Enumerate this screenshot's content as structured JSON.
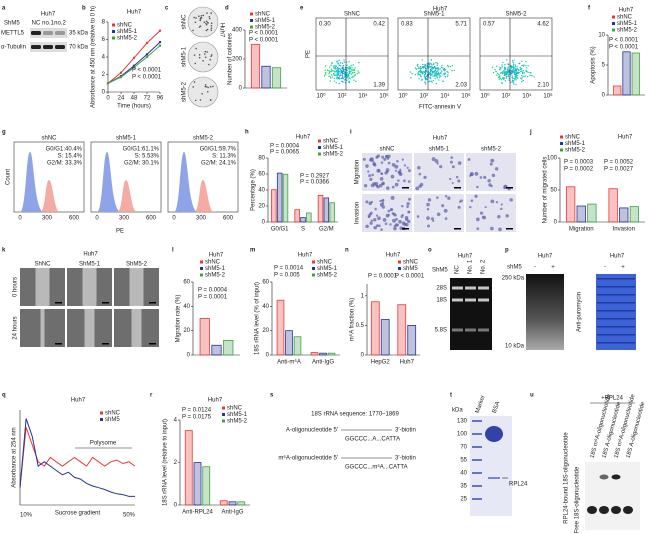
{
  "figure": {
    "a": {
      "letter": "a",
      "cell": "Huh7",
      "group": "ShM5",
      "lanes": [
        "NC",
        "no.1",
        "no.2"
      ],
      "proteins": [
        "METTL5",
        "α-Tubulin"
      ],
      "sizes": [
        "35 kDa",
        "70 kDa"
      ]
    },
    "b": {
      "letter": "b",
      "type": "line",
      "title": "Huh7",
      "xlabel": "Time (hours)",
      "ylabel": "Absorbance at 450 nm (relative to 0 h)",
      "x": [
        0,
        24,
        48,
        72,
        96
      ],
      "xlim": [
        0,
        96
      ],
      "xticks": [
        0,
        24,
        48,
        72,
        96
      ],
      "ylim": [
        0,
        8
      ],
      "yticks": [
        0,
        2,
        4,
        6,
        8
      ],
      "series": [
        {
          "name": "shNC",
          "color": "#e53935",
          "values": [
            1,
            2.2,
            3.9,
            5.6,
            7.0
          ]
        },
        {
          "name": "shM5-1",
          "color": "#283593",
          "values": [
            1,
            1.8,
            3.0,
            4.3,
            5.7
          ]
        },
        {
          "name": "shM5-2",
          "color": "#43a047",
          "values": [
            1,
            1.7,
            2.8,
            4.0,
            5.3
          ]
        }
      ],
      "annotations": [
        "P < 0.0001",
        "P < 0.0001"
      ]
    },
    "c": {
      "letter": "c",
      "cell": "Huh7",
      "rows": [
        "shNC",
        "shM5-1",
        "shM5-2"
      ]
    },
    "d": {
      "letter": "d",
      "type": "bar",
      "ylabel": "Number of colonies",
      "categories": [
        null
      ],
      "ylim": [
        0,
        400
      ],
      "yticks": [
        0,
        200,
        400
      ],
      "series": [
        {
          "name": "shNC",
          "color": "#e53935",
          "values": [
            300
          ]
        },
        {
          "name": "shM5-1",
          "color": "#283593",
          "values": [
            150
          ]
        },
        {
          "name": "shM5-2",
          "color": "#43a047",
          "values": [
            140
          ]
        }
      ],
      "annotations": [
        "P < 0.0001",
        "P < 0.0001"
      ]
    },
    "e": {
      "letter": "e",
      "title": "Huh7",
      "ylabel": "PE",
      "xlabel": "FITC-annexin V",
      "xticks": [
        "10⁰",
        "10²",
        "10⁴",
        "10⁶"
      ],
      "boxes": [
        {
          "label": "ShNC",
          "quadrants": [
            "0.30",
            "0.42",
            "1.39"
          ]
        },
        {
          "label": "ShM5-1",
          "quadrants": [
            "0.83",
            "5.71",
            "2.03"
          ]
        },
        {
          "label": "ShM5-2",
          "quadrants": [
            "0.57",
            "4.62",
            "2.10"
          ]
        }
      ]
    },
    "f": {
      "letter": "f",
      "type": "bar",
      "title": "Huh7",
      "ylabel": "Apoptosis (%)",
      "categories": [
        null
      ],
      "ylim": [
        0,
        10
      ],
      "yticks": [
        0,
        5,
        10
      ],
      "series": [
        {
          "name": "shNC",
          "color": "#e53935",
          "values": [
            1.5
          ]
        },
        {
          "name": "shM5-1",
          "color": "#283593",
          "values": [
            7.2
          ]
        },
        {
          "name": "shM5-2",
          "color": "#43a047",
          "values": [
            7.0
          ]
        }
      ],
      "annotations": [
        "P < 0.0001",
        "P < 0.0001"
      ]
    },
    "g": {
      "letter": "g",
      "ylabel": "Count",
      "xlabel": "PE",
      "xticks": [
        0,
        300,
        600
      ],
      "boxes": [
        {
          "label": "shNC",
          "stats": [
            "G0/G1:40.4%",
            "S: 15.4%",
            "G2/M: 33.3%"
          ]
        },
        {
          "label": "shM5-1",
          "stats": [
            "G0/G1:61.1%",
            "S: 5.53%",
            "G2/M: 30.1%"
          ]
        },
        {
          "label": "shM5-2",
          "stats": [
            "G0/G1:59.7%",
            "S: 11.3%",
            "G2/M: 24.1%"
          ]
        }
      ]
    },
    "h": {
      "letter": "h",
      "type": "bar",
      "title": "Huh7",
      "ylabel": "Percentage (%)",
      "categories": [
        "G0/G1",
        "S",
        "G2/M"
      ],
      "ylim": [
        0,
        80
      ],
      "yticks": [
        0,
        20,
        40,
        60,
        80
      ],
      "series": [
        {
          "name": "shNC",
          "color": "#e53935",
          "values": [
            40.4,
            15.4,
            33.3
          ]
        },
        {
          "name": "shM5-1",
          "color": "#283593",
          "values": [
            61.1,
            5.53,
            30.1
          ]
        },
        {
          "name": "shM5-2",
          "color": "#43a047",
          "values": [
            59.7,
            11.3,
            24.1
          ]
        }
      ],
      "annotations": [
        "P = 0.0004",
        "P = 0.0065",
        "P = 0.2927",
        "P = 0.0366"
      ]
    },
    "i": {
      "letter": "i",
      "title": "Huh7",
      "cols": [
        "shNC",
        "shM5-1",
        "shM5-2"
      ],
      "rows": [
        "Migration",
        "Invasion"
      ]
    },
    "j": {
      "letter": "j",
      "type": "bar",
      "title": "Huh7",
      "ylabel": "Number of migrated cells",
      "categories": [
        "Migration",
        "Invasion"
      ],
      "ylim": [
        0,
        100
      ],
      "yticks": [
        0,
        50,
        100
      ],
      "series": [
        {
          "name": "shNC",
          "color": "#e53935",
          "values": [
            55,
            52
          ]
        },
        {
          "name": "shM5-1",
          "color": "#283593",
          "values": [
            25,
            22
          ]
        },
        {
          "name": "shM5-2",
          "color": "#43a047",
          "values": [
            28,
            24
          ]
        }
      ],
      "annotations": [
        "P = 0.0003",
        "P = 0.0002",
        "P = 0.0052",
        "P = 0.0027"
      ]
    },
    "k": {
      "letter": "k",
      "title": "Huh7",
      "cols": [
        "ShNC",
        "ShM5-1",
        "ShM5-2"
      ],
      "rows": [
        "0 hours",
        "24 hours"
      ]
    },
    "l": {
      "letter": "l",
      "type": "bar",
      "title": "Huh7",
      "ylabel": "Migration rate (%)",
      "categories": [
        null
      ],
      "ylim": [
        0,
        60
      ],
      "yticks": [
        0,
        20,
        40,
        60
      ],
      "series": [
        {
          "name": "shNC",
          "color": "#e53935",
          "values": [
            30
          ]
        },
        {
          "name": "shM5-1",
          "color": "#283593",
          "values": [
            8
          ]
        },
        {
          "name": "shM5-2",
          "color": "#43a047",
          "values": [
            12
          ]
        }
      ],
      "annotations": [
        "P = 0.0004",
        "P = 0.0001"
      ]
    },
    "m": {
      "letter": "m",
      "type": "bar",
      "title": "Huh7",
      "ylabel": "18S rRNA level (% of input)",
      "categories": [
        "Anti-m⁶A",
        "Anti-IgG"
      ],
      "ylim": [
        0,
        60
      ],
      "yticks": [
        0,
        20,
        40,
        60
      ],
      "series": [
        {
          "name": "shNC",
          "color": "#e53935",
          "values": [
            45,
            2
          ]
        },
        {
          "name": "shM5-1",
          "color": "#283593",
          "values": [
            20,
            1.5
          ]
        },
        {
          "name": "shM5-2",
          "color": "#43a047",
          "values": [
            15,
            1.5
          ]
        }
      ],
      "annotations": [
        "P = 0.0014",
        "P = 0.005"
      ]
    },
    "n": {
      "letter": "n",
      "type": "bar",
      "title": "Huh7",
      "ylabel": "m⁶A fraction (%)",
      "categories": [
        "HepG2",
        "Huh7"
      ],
      "ylim": [
        0,
        1.2
      ],
      "yticks": [
        0,
        0.5,
        1
      ],
      "series": [
        {
          "name": "shNC",
          "color": "#e53935",
          "values": [
            0.9,
            0.85
          ]
        },
        {
          "name": "shM5",
          "color": "#283593",
          "values": [
            0.6,
            0.5
          ]
        }
      ],
      "annotations": [
        "P = 0.0001",
        "P < 0.0001"
      ]
    },
    "o": {
      "letter": "o",
      "title": "Huh7",
      "group": "ShM5",
      "lanes": [
        "NC",
        "No. 1",
        "No. 2"
      ],
      "bands": [
        "28S",
        "18S",
        "5.8S"
      ]
    },
    "p": {
      "letter": "p",
      "titles": [
        "Huh7",
        "Huh7"
      ],
      "group": "shM5",
      "signs": [
        "-",
        "+",
        "-",
        "+"
      ],
      "sizes": [
        "250 kDa",
        "10 kDa"
      ],
      "ylabel": "Anti-puromycin"
    },
    "q": {
      "letter": "q",
      "type": "line",
      "title": "Huh7",
      "xlabel": "Sucrose gradient",
      "ylabel": "Absorbance at 254 nm",
      "gradient": [
        "10%",
        "50%"
      ],
      "label": "Polysome",
      "series": [
        {
          "name": "shNC",
          "color": "#e53935",
          "values": [
            0.2,
            0.9,
            0.7,
            0.5,
            0.45,
            0.55,
            0.5,
            0.45,
            0.5,
            0.55,
            0.5,
            0.45,
            0.55,
            0.5,
            0.45,
            0.5,
            0.52,
            0.48,
            0.5,
            0.45
          ]
        },
        {
          "name": "shM5",
          "color": "#283593",
          "values": [
            0.2,
            1.0,
            0.8,
            0.45,
            0.5,
            0.45,
            0.4,
            0.35,
            0.38,
            0.32,
            0.3,
            0.25,
            0.22,
            0.2,
            0.18,
            0.15,
            0.13,
            0.12,
            0.1,
            0.1
          ]
        }
      ]
    },
    "r": {
      "letter": "r",
      "type": "bar",
      "title": "Huh7",
      "ylabel": "18S rRNA level (relative to input)",
      "categories": [
        "Anti-RPL24",
        "Anti-IgG"
      ],
      "ylim": [
        0,
        4
      ],
      "yticks": [
        0,
        2,
        4
      ],
      "series": [
        {
          "name": "shNC",
          "color": "#e53935",
          "values": [
            3.5,
            0.2
          ]
        },
        {
          "name": "shM5-1",
          "color": "#283593",
          "values": [
            2,
            0.15
          ]
        },
        {
          "name": "shM5-2",
          "color": "#43a047",
          "values": [
            1.8,
            0.15
          ]
        }
      ],
      "annotations": [
        "P = 0.0124",
        "P = 0.0175"
      ]
    },
    "s": {
      "letter": "s",
      "sequence": "18S rRNA sequence: 1770–1869",
      "probes": [
        {
          "name": "A-oligonucleotide 5′",
          "end": "3′-biotin",
          "seq": "GGCCC...A...CATTA"
        },
        {
          "name": "m⁶A-oligonucleotide 5′",
          "end": "3′-biotin",
          "seq": "GGCCC...m⁶A...CATTA"
        }
      ]
    },
    "t": {
      "letter": "t",
      "unit": "kDa",
      "lanes": [
        "Marker",
        "BSA"
      ],
      "markers": [
        "130",
        "100",
        "70",
        "55",
        "40",
        "35",
        "25"
      ],
      "band": "RPL24"
    },
    "u": {
      "letter": "u",
      "treatment": "+RPL24",
      "lanes": [
        "18S m⁶A-oligonucleotide",
        "18S A-oligonucleotide",
        "18S m⁶A-oligonucleotide",
        "18S A-oligonucleotide"
      ],
      "rows": [
        "RPL24-bound 18S-oligonucleotide",
        "Free 18S-oligonucleotide"
      ]
    }
  }
}
